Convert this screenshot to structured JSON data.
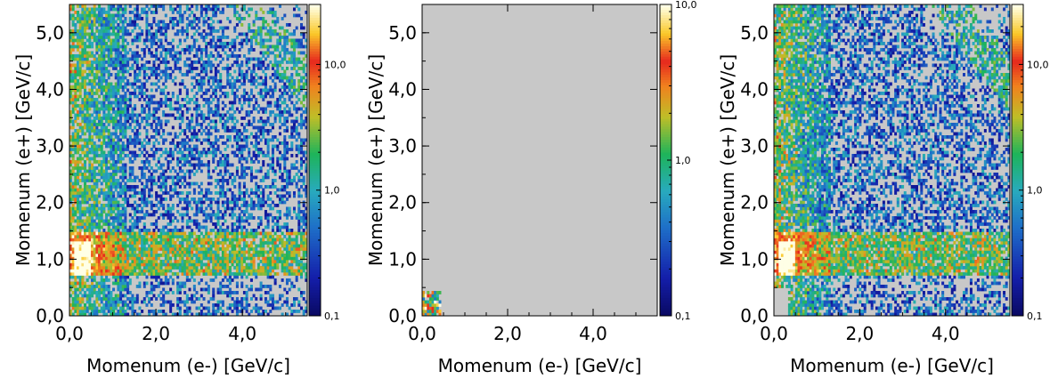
{
  "chart_data": [
    {
      "type": "heatmap",
      "panel": "left",
      "title": "",
      "xlabel": "Momenum (e-) [GeV/c]",
      "ylabel": "Momenum (e+) [GeV/c]",
      "xlim": [
        0,
        5.5
      ],
      "ylim": [
        0,
        5.5
      ],
      "xticks": [
        0,
        2,
        4
      ],
      "xtick_labels": [
        "0,0",
        "2,0",
        "4,0"
      ],
      "yticks": [
        0,
        1,
        2,
        3,
        4,
        5
      ],
      "ytick_labels": [
        "0,0",
        "1,0",
        "2,0",
        "3,0",
        "4,0",
        "5,0"
      ],
      "color_scale": "log",
      "colorbar_range": [
        0.1,
        30
      ],
      "colorbar_ticks": [
        0.1,
        1,
        10
      ],
      "colorbar_labels": [
        "0,1",
        "1,0",
        "10,0"
      ],
      "empty_color": "#c8c8c8",
      "bins": [
        100,
        100
      ],
      "features": {
        "hot_spot": {
          "x": [
            0.1,
            0.5
          ],
          "y": [
            0.7,
            1.3
          ]
        },
        "high_band": {
          "y": [
            0.7,
            1.5
          ],
          "x": [
            0.0,
            5.5
          ]
        },
        "empty_region": {
          "x": [
            0.0,
            0.5
          ],
          "y": [
            0.0,
            0.5
          ],
          "filled": true
        },
        "structure": "continuum"
      }
    },
    {
      "type": "heatmap",
      "panel": "middle",
      "title": "",
      "xlabel": "Momenum (e-) [GeV/c]",
      "ylabel": "Momenum (e+) [GeV/c]",
      "xlim": [
        0,
        5.5
      ],
      "ylim": [
        0,
        5.5
      ],
      "xticks": [
        0,
        2,
        4
      ],
      "xtick_labels": [
        "0,0",
        "2,0",
        "4,0"
      ],
      "yticks": [
        0,
        1,
        2,
        3,
        4,
        5
      ],
      "ytick_labels": [
        "0,0",
        "1,0",
        "2,0",
        "3,0",
        "4,0",
        "5,0"
      ],
      "color_scale": "log",
      "colorbar_range": [
        0.1,
        10
      ],
      "colorbar_ticks": [
        0.1,
        1,
        10
      ],
      "colorbar_labels": [
        "0,1",
        "1,0",
        "10,0"
      ],
      "empty_color": "#c8c8c8",
      "bins": [
        100,
        100
      ],
      "features": {
        "structure": "corner-only",
        "filled_region": {
          "x": [
            0.0,
            0.45
          ],
          "y": [
            0.0,
            0.45
          ]
        }
      }
    },
    {
      "type": "heatmap",
      "panel": "right",
      "title": "",
      "xlabel": "Momenum (e-) [GeV/c]",
      "ylabel": "Momenum (e+) [GeV/c]",
      "xlim": [
        0,
        5.5
      ],
      "ylim": [
        0,
        5.5
      ],
      "xticks": [
        0,
        2,
        4
      ],
      "xtick_labels": [
        "0,0",
        "2,0",
        "4,0"
      ],
      "yticks": [
        0,
        1,
        2,
        3,
        4,
        5
      ],
      "ytick_labels": [
        "0,0",
        "1,0",
        "2,0",
        "3,0",
        "4,0",
        "5,0"
      ],
      "color_scale": "log",
      "colorbar_range": [
        0.1,
        30
      ],
      "colorbar_ticks": [
        0.1,
        1,
        10
      ],
      "colorbar_labels": [
        "0,1",
        "1,0",
        "10,0"
      ],
      "empty_color": "#c8c8c8",
      "bins": [
        100,
        100
      ],
      "features": {
        "hot_spot": {
          "x": [
            0.1,
            0.5
          ],
          "y": [
            0.7,
            1.3
          ]
        },
        "high_band": {
          "y": [
            0.7,
            1.5
          ],
          "x": [
            0.0,
            5.5
          ]
        },
        "empty_region": {
          "x": [
            0.0,
            0.35
          ],
          "y": [
            0.0,
            0.5
          ],
          "filled": false
        },
        "structure": "continuum"
      }
    }
  ]
}
